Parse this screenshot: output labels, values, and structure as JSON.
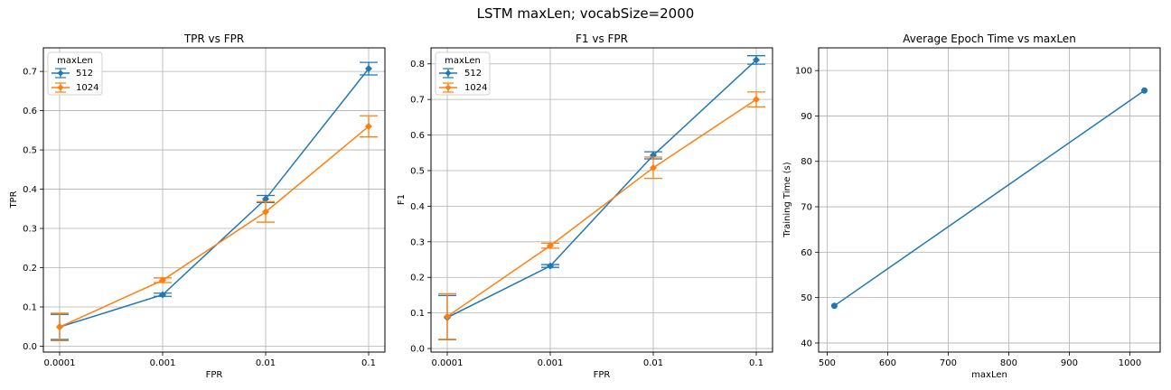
{
  "figure": {
    "suptitle": "LSTM maxLen; vocabSize=2000"
  },
  "colors": {
    "series_512": "#1f77b4",
    "series_1024": "#ff7f0e",
    "grid": "#b0b0b0"
  },
  "chart_data": [
    {
      "id": "tpr",
      "type": "line",
      "title": "TPR vs FPR",
      "xlabel": "FPR",
      "ylabel": "TPR",
      "x": [
        "0.0001",
        "0.001",
        "0.01",
        "0.1"
      ],
      "ylim": [
        -0.015,
        0.76
      ],
      "yticks": [
        "0.0",
        "0.1",
        "0.2",
        "0.3",
        "0.4",
        "0.5",
        "0.6",
        "0.7"
      ],
      "grid": true,
      "error_bars": true,
      "legend": {
        "title": "maxLen",
        "placement": "upper-left"
      },
      "series": [
        {
          "name": "512",
          "color": "#1f77b4",
          "marker": "diamond",
          "values": [
            0.049,
            0.131,
            0.375,
            0.707
          ],
          "errors": [
            0.032,
            0.004,
            0.009,
            0.016
          ]
        },
        {
          "name": "1024",
          "color": "#ff7f0e",
          "marker": "diamond",
          "values": [
            0.049,
            0.168,
            0.342,
            0.56
          ],
          "errors": [
            0.035,
            0.006,
            0.026,
            0.027
          ]
        }
      ]
    },
    {
      "id": "f1",
      "type": "line",
      "title": "F1 vs FPR",
      "xlabel": "FPR",
      "ylabel": "F1",
      "x": [
        "0.0001",
        "0.001",
        "0.01",
        "0.1"
      ],
      "ylim": [
        -0.01,
        0.845
      ],
      "yticks": [
        "0.0",
        "0.1",
        "0.2",
        "0.3",
        "0.4",
        "0.5",
        "0.6",
        "0.7",
        "0.8"
      ],
      "grid": true,
      "error_bars": true,
      "legend": {
        "title": "maxLen",
        "placement": "upper-left"
      },
      "series": [
        {
          "name": "512",
          "color": "#1f77b4",
          "marker": "diamond",
          "values": [
            0.087,
            0.232,
            0.543,
            0.811
          ],
          "errors": [
            0.062,
            0.004,
            0.01,
            0.012
          ]
        },
        {
          "name": "1024",
          "color": "#ff7f0e",
          "marker": "diamond",
          "values": [
            0.09,
            0.289,
            0.508,
            0.7
          ],
          "errors": [
            0.064,
            0.007,
            0.03,
            0.021
          ]
        }
      ]
    },
    {
      "id": "time",
      "type": "line",
      "title": "Average Epoch Time vs maxLen",
      "xlabel": "maxLen",
      "ylabel": "Training Time (s)",
      "xlim": [
        486,
        1050
      ],
      "xticks": [
        500,
        600,
        700,
        800,
        900,
        1000
      ],
      "ylim": [
        38,
        105
      ],
      "yticks": [
        40,
        50,
        60,
        70,
        80,
        90,
        100
      ],
      "grid": true,
      "series": [
        {
          "color": "#1f77b4",
          "marker": "circle",
          "points": [
            [
              512,
              48.2
            ],
            [
              1024,
              95.6
            ]
          ]
        }
      ]
    }
  ]
}
